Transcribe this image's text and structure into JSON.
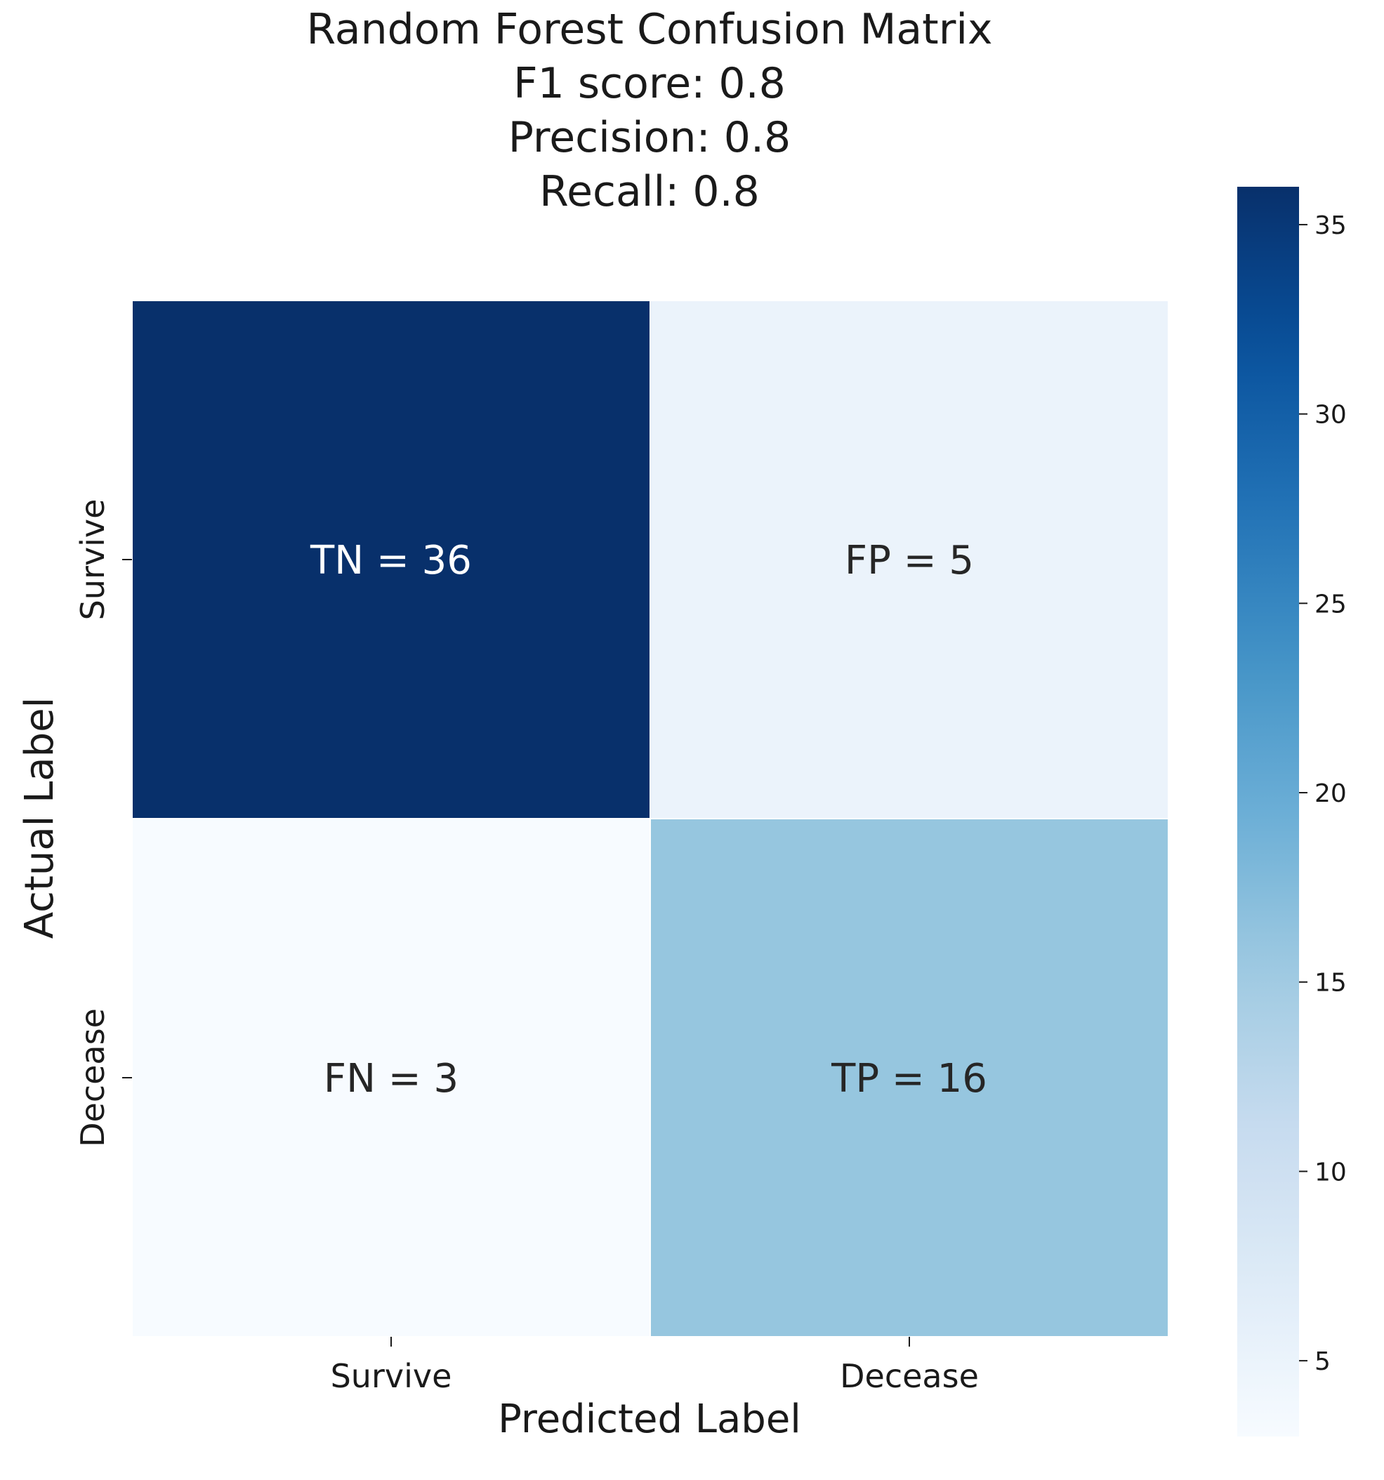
{
  "chart_data": {
    "type": "heatmap",
    "title": [
      "Random Forest Confusion Matrix",
      "F1 score: 0.8",
      "Precision: 0.8",
      "Recall: 0.8"
    ],
    "xlabel": "Predicted Label",
    "ylabel": "Actual Label",
    "x_categories": [
      "Survive",
      "Decease"
    ],
    "y_categories": [
      "Survive",
      "Decease"
    ],
    "values": [
      [
        36,
        5
      ],
      [
        3,
        16
      ]
    ],
    "annotations": [
      [
        "TN = 36",
        "FP = 5"
      ],
      [
        "FN = 3",
        "TP = 16"
      ]
    ],
    "colormap": "Blues",
    "colorbar": {
      "range": [
        3,
        36
      ],
      "ticks": [
        5,
        10,
        15,
        20,
        25,
        30,
        35
      ],
      "placement": "right"
    },
    "grid": false
  }
}
